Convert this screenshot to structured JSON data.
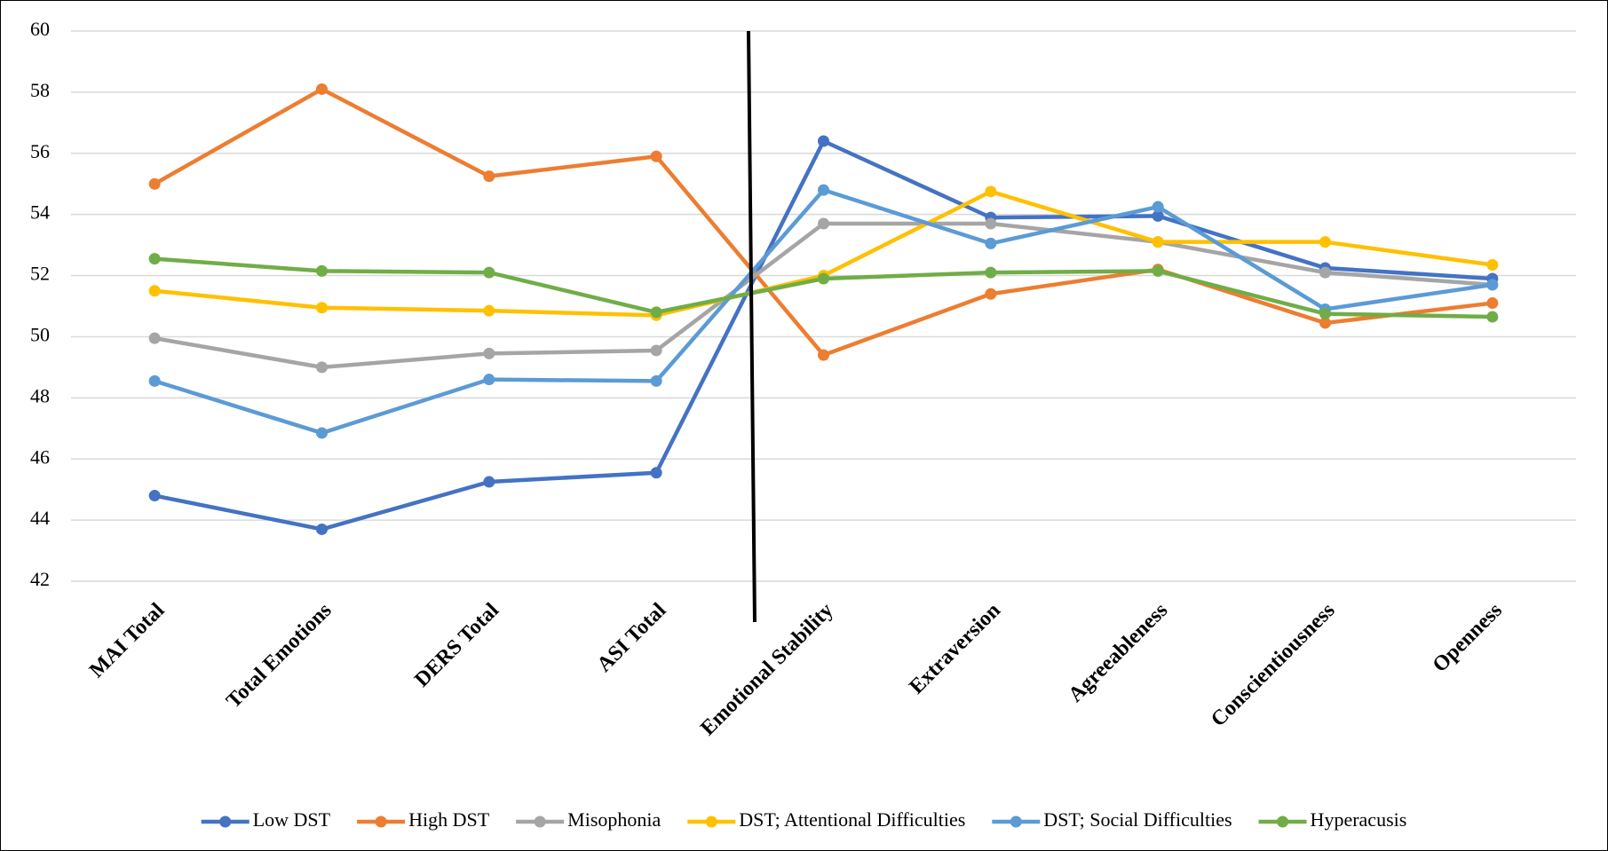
{
  "chart_data": {
    "type": "line",
    "categories": [
      "MAI Total",
      "Total Emotions",
      "DERS Total",
      "ASI Total",
      "Emotional Stability",
      "Extraversion",
      "Agreeableness",
      "Conscientiousness",
      "Openness"
    ],
    "ylim": [
      42,
      60
    ],
    "yticks": [
      42,
      44,
      46,
      48,
      50,
      52,
      54,
      56,
      58,
      60
    ],
    "grid": true,
    "legend": "bottom",
    "series": [
      {
        "name": "Low DST",
        "color": "#4472c4",
        "values": [
          44.8,
          43.7,
          45.25,
          45.55,
          56.4,
          53.9,
          53.95,
          52.25,
          51.9
        ]
      },
      {
        "name": "High DST",
        "color": "#ed7d31",
        "values": [
          55.0,
          58.1,
          55.25,
          55.9,
          49.4,
          51.4,
          52.2,
          50.45,
          51.1
        ]
      },
      {
        "name": "Misophonia",
        "color": "#a5a5a5",
        "values": [
          49.95,
          49.0,
          49.45,
          49.55,
          53.7,
          53.7,
          53.1,
          52.1,
          51.7
        ]
      },
      {
        "name": "DST; Attentional Difficulties",
        "color": "#ffc000",
        "values": [
          51.5,
          50.95,
          50.85,
          50.7,
          52.0,
          54.75,
          53.1,
          53.1,
          52.35
        ]
      },
      {
        "name": "DST; Social Difficulties",
        "color": "#5b9bd5",
        "values": [
          48.55,
          46.85,
          48.6,
          48.55,
          54.8,
          53.05,
          54.25,
          50.9,
          51.7
        ]
      },
      {
        "name": "Hyperacusis",
        "color": "#70ad47",
        "values": [
          52.55,
          52.15,
          52.1,
          50.8,
          51.9,
          52.1,
          52.15,
          50.75,
          50.65
        ]
      }
    ]
  }
}
